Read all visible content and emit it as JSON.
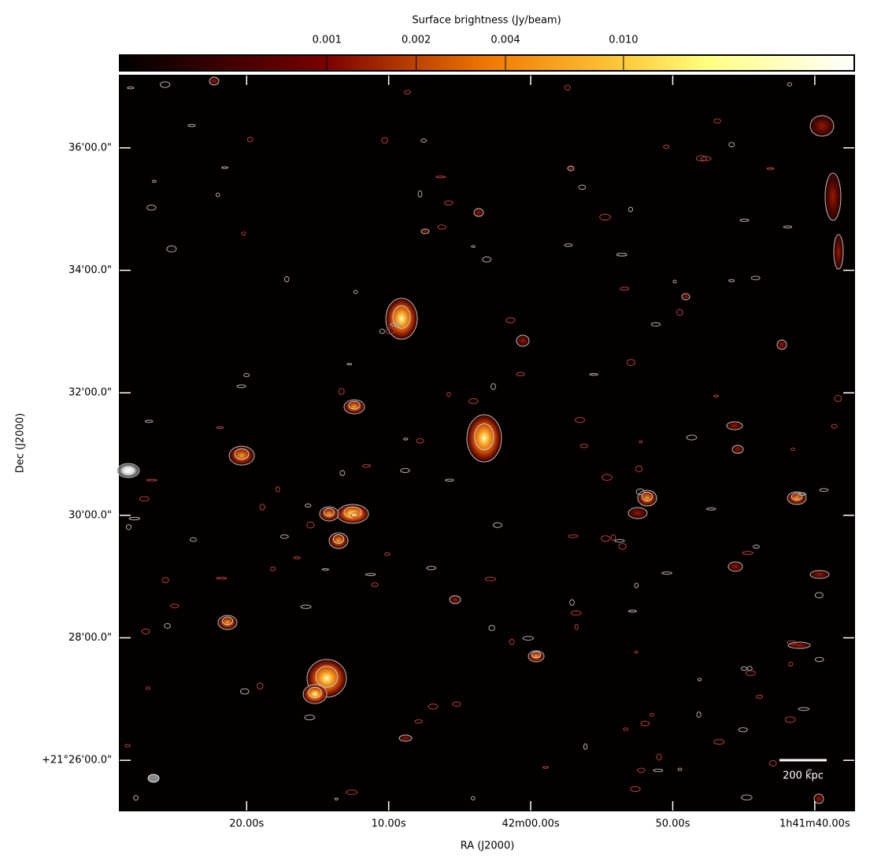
{
  "chart_data": {
    "type": "image",
    "colorbar_label": "Surface brightness (Jy/beam)",
    "clim": [
      0.0002,
      0.06
    ],
    "clog": true,
    "cticks": [
      0.001,
      0.002,
      0.004,
      {
        "value": 0.01,
        "label": "0.010"
      }
    ],
    "x_label": "RA (J2000)",
    "xlim": [
      6148.94,
      6097.22
    ],
    "xticks": [
      {
        "value": 6140,
        "label": "20.00s"
      },
      {
        "value": 6130,
        "label": "10.00s"
      },
      {
        "value": 6120,
        "label": "42m00.00s"
      },
      {
        "value": 6110,
        "label": "50.00s"
      },
      {
        "value": 6100,
        "label": "1h41m40.00s"
      }
    ],
    "y_label": "Dec (J2000)",
    "ylim": [
      1285.18,
      1297.18
    ],
    "yticks": [
      {
        "value": 1296,
        "label": "36'00.0\""
      },
      {
        "value": 1294,
        "label": "34'00.0\""
      },
      {
        "value": 1292,
        "label": "32'00.0\""
      },
      {
        "value": 1290,
        "label": "30'00.0\""
      },
      {
        "value": 1288,
        "label": "28'00.0\""
      },
      {
        "value": 1286,
        "label": "+21°26'00.0\""
      }
    ],
    "scalebar_label": "200 kpc"
  }
}
